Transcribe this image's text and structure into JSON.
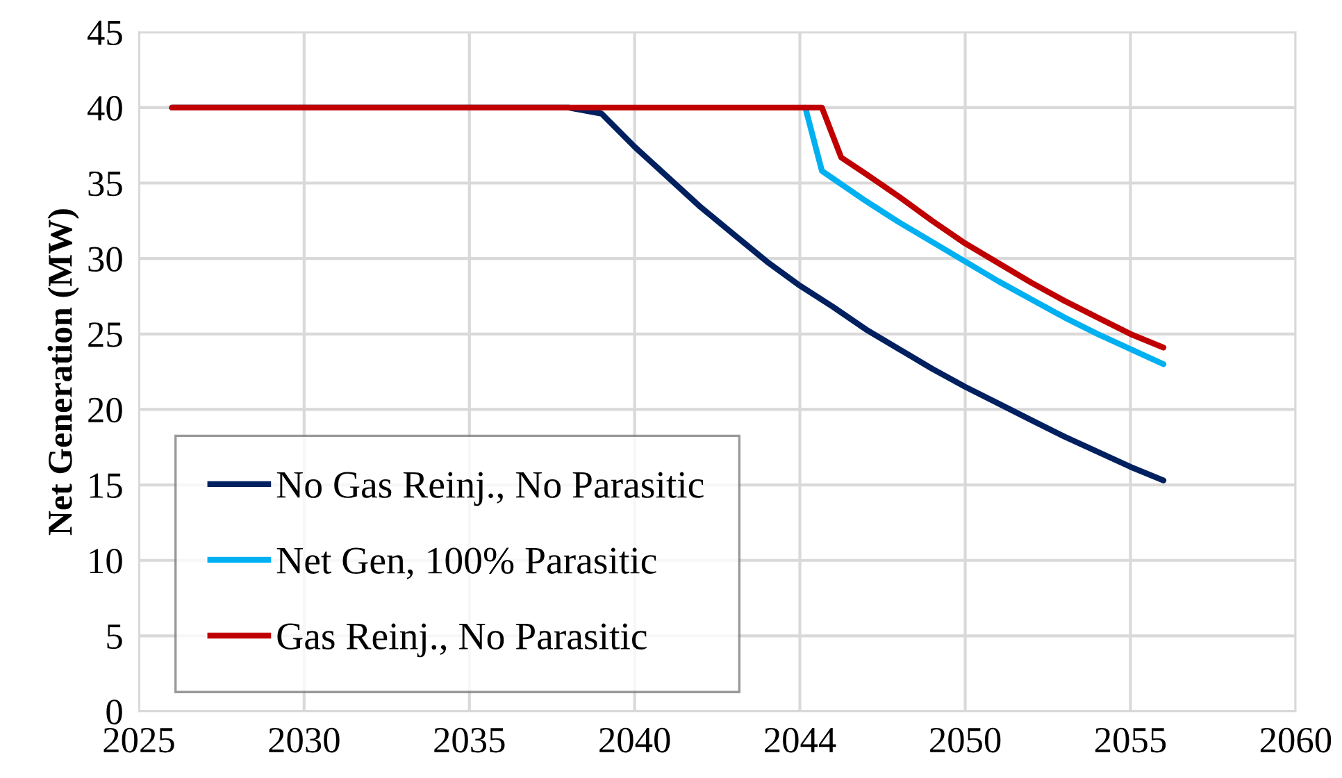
{
  "chart_data": {
    "type": "line",
    "ylabel": "Net Generation (MW)",
    "xlim": [
      "2025",
      "2060"
    ],
    "xticks": [
      "2025",
      "2030",
      "2035",
      "2040",
      {
        "value": "2044-12-31",
        "label": "2044"
      },
      "2050",
      "2055",
      "2060"
    ],
    "ylim": [
      0,
      45
    ],
    "yticks": [
      0,
      5,
      10,
      15,
      20,
      25,
      30,
      35,
      40,
      45
    ],
    "grid": true,
    "legend": "bottom left",
    "marker": "none",
    "line_style": "solid",
    "series": [
      {
        "name": "No Gas Reinj., No Parasitic",
        "color": "#002060",
        "x": [
          "2026",
          "2038",
          "2039",
          "2040",
          "2041",
          "2042",
          "2043",
          "2044",
          "2045",
          "2046",
          "2047",
          "2048",
          "2049",
          "2050",
          "2051",
          "2052",
          "2053",
          "2054",
          "2055",
          "2056"
        ],
        "values": [
          40,
          40,
          39.6,
          37.4,
          35.4,
          33.4,
          31.6,
          29.8,
          28.2,
          26.8,
          25.3,
          24.0,
          22.7,
          21.5,
          20.4,
          19.3,
          18.2,
          17.2,
          16.2,
          15.3
        ]
      },
      {
        "name": "Net Gen, 100% Parasitic",
        "color": "#00b0f0",
        "x": [
          "2045-03",
          "2045-09",
          "2046",
          "2047",
          "2048",
          "2049",
          "2050",
          "2051",
          "2052",
          "2053",
          "2054",
          "2055",
          "2056"
        ],
        "values": [
          40,
          35.8,
          35.3,
          33.8,
          32.4,
          31.1,
          29.8,
          28.5,
          27.3,
          26.1,
          25.0,
          24.0,
          23.0
        ]
      },
      {
        "name": "Gas Reinj., No Parasitic",
        "color": "#c00000",
        "x": [
          "2026",
          "2045-09",
          "2046-04",
          "2047",
          "2048",
          "2049",
          "2050",
          "2051",
          "2052",
          "2053",
          "2054",
          "2055",
          "2056"
        ],
        "values": [
          40,
          40,
          36.7,
          35.6,
          34.1,
          32.5,
          31.0,
          29.7,
          28.4,
          27.2,
          26.1,
          25.0,
          24.1
        ]
      }
    ]
  }
}
